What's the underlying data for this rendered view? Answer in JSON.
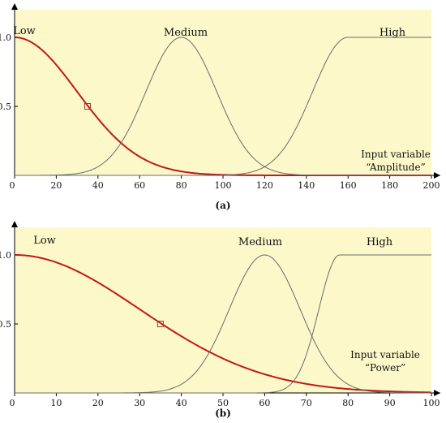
{
  "chart_data": [
    {
      "type": "line",
      "panel_label": "(a)",
      "title": "",
      "xlabel": "Input variable",
      "xlabel2": "“Amplitude”",
      "ylabel": "",
      "xlim": [
        0,
        200
      ],
      "ylim": [
        0,
        1.2
      ],
      "xticks": [
        "0",
        "20",
        "40",
        "60",
        "80",
        "100",
        "120",
        "140",
        "160",
        "180",
        "200"
      ],
      "yticks": [
        "0.5",
        "1.0"
      ],
      "sets": [
        {
          "name": "Low",
          "shape": "z-gauss",
          "center": 0,
          "sigma": 30,
          "color": "#c0191a"
        },
        {
          "name": "Medium",
          "shape": "gauss",
          "center": 80,
          "sigma": 17,
          "color": "#6b6b6b"
        },
        {
          "name": "High",
          "shape": "s-gauss",
          "center": 160,
          "sigma": 17,
          "color": "#6b6b6b"
        }
      ],
      "marker": {
        "x": 35,
        "y": 0.5
      }
    },
    {
      "type": "line",
      "panel_label": "(b)",
      "title": "",
      "xlabel": "Input variable",
      "xlabel2": "“Power”",
      "ylabel": "",
      "xlim": [
        0,
        100
      ],
      "ylim": [
        0,
        1.2
      ],
      "xticks": [
        "0",
        "10",
        "20",
        "30",
        "40",
        "50",
        "60",
        "70",
        "80",
        "90",
        "100"
      ],
      "yticks": [
        "0.5",
        "1.0"
      ],
      "sets": [
        {
          "name": "Low",
          "shape": "z-gauss",
          "center": 0,
          "sigma": 30,
          "color": "#c0191a"
        },
        {
          "name": "Medium",
          "shape": "gauss",
          "center": 60,
          "sigma": 8.5,
          "color": "#6b6b6b"
        },
        {
          "name": "High",
          "shape": "s-gauss",
          "center": 78,
          "sigma": 5,
          "color": "#6b6b6b"
        }
      ],
      "marker": {
        "x": 35,
        "y": 0.5
      }
    }
  ]
}
